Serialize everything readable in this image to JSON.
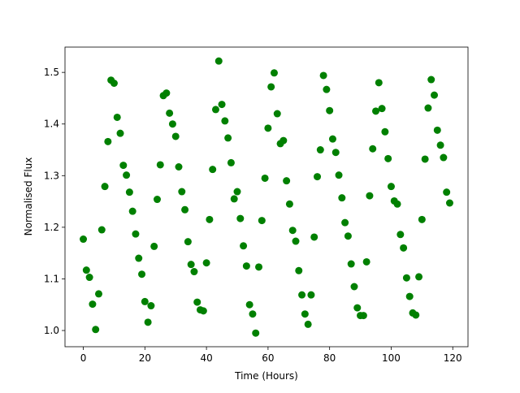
{
  "chart_data": {
    "type": "scatter",
    "x_label": "Time (Hours)",
    "y_label": "Normalised Flux",
    "color": "#008000",
    "grid": false,
    "xlim": [
      -5.95,
      124.95
    ],
    "ylim": [
      0.9686,
      1.549
    ],
    "xticks": [
      0,
      20,
      40,
      60,
      80,
      100,
      120
    ],
    "yticks": [
      {
        "value": 1,
        "label": "1.0"
      },
      1.1,
      1.2,
      1.3,
      1.4,
      1.5
    ],
    "x": [
      0,
      1,
      2,
      3,
      4,
      5,
      6,
      7,
      8,
      9,
      10,
      11,
      12,
      13,
      14,
      15,
      16,
      17,
      18,
      19,
      20,
      21,
      22,
      23,
      24,
      25,
      26,
      27,
      28,
      29,
      30,
      31,
      32,
      33,
      34,
      35,
      36,
      37,
      38,
      39,
      40,
      41,
      42,
      43,
      44,
      45,
      46,
      47,
      48,
      49,
      50,
      51,
      52,
      53,
      54,
      55,
      56,
      57,
      58,
      59,
      60,
      61,
      62,
      63,
      64,
      65,
      66,
      67,
      68,
      69,
      70,
      71,
      72,
      73,
      74,
      75,
      76,
      77,
      78,
      79,
      80,
      81,
      82,
      83,
      84,
      85,
      86,
      87,
      88,
      89,
      90,
      91,
      92,
      93,
      94,
      95,
      96,
      97,
      98,
      99,
      100,
      101,
      102,
      103,
      104,
      105,
      106,
      107,
      108,
      109,
      110,
      111,
      112,
      113,
      114,
      115,
      116,
      117,
      118,
      119
    ],
    "values": [
      1.177,
      1.117,
      1.103,
      1.051,
      1.002,
      1.071,
      1.195,
      1.279,
      1.366,
      1.485,
      1.479,
      1.413,
      1.382,
      1.32,
      1.301,
      1.268,
      1.231,
      1.187,
      1.14,
      1.109,
      1.056,
      1.016,
      1.048,
      1.163,
      1.254,
      1.321,
      1.455,
      1.46,
      1.421,
      1.4,
      1.376,
      1.317,
      1.269,
      1.234,
      1.172,
      1.128,
      1.114,
      1.055,
      1.04,
      1.038,
      1.131,
      1.215,
      1.312,
      1.428,
      1.522,
      1.438,
      1.406,
      1.373,
      1.325,
      1.255,
      1.269,
      1.217,
      1.164,
      1.125,
      1.05,
      1.032,
      0.995,
      1.123,
      1.213,
      1.295,
      1.392,
      1.472,
      1.499,
      1.42,
      1.362,
      1.368,
      1.29,
      1.245,
      1.194,
      1.173,
      1.116,
      1.069,
      1.032,
      1.012,
      1.069,
      1.181,
      1.298,
      1.35,
      1.494,
      1.467,
      1.426,
      1.371,
      1.345,
      1.301,
      1.257,
      1.209,
      1.183,
      1.129,
      1.085,
      1.044,
      1.029,
      1.029,
      1.133,
      1.261,
      1.352,
      1.425,
      1.48,
      1.43,
      1.385,
      1.333,
      1.279,
      1.251,
      1.245,
      1.186,
      1.16,
      1.102,
      1.066,
      1.034,
      1.03,
      1.104,
      1.215,
      1.332,
      1.431,
      1.486,
      1.456,
      1.388,
      1.359,
      1.335,
      1.268,
      1.247
    ]
  }
}
